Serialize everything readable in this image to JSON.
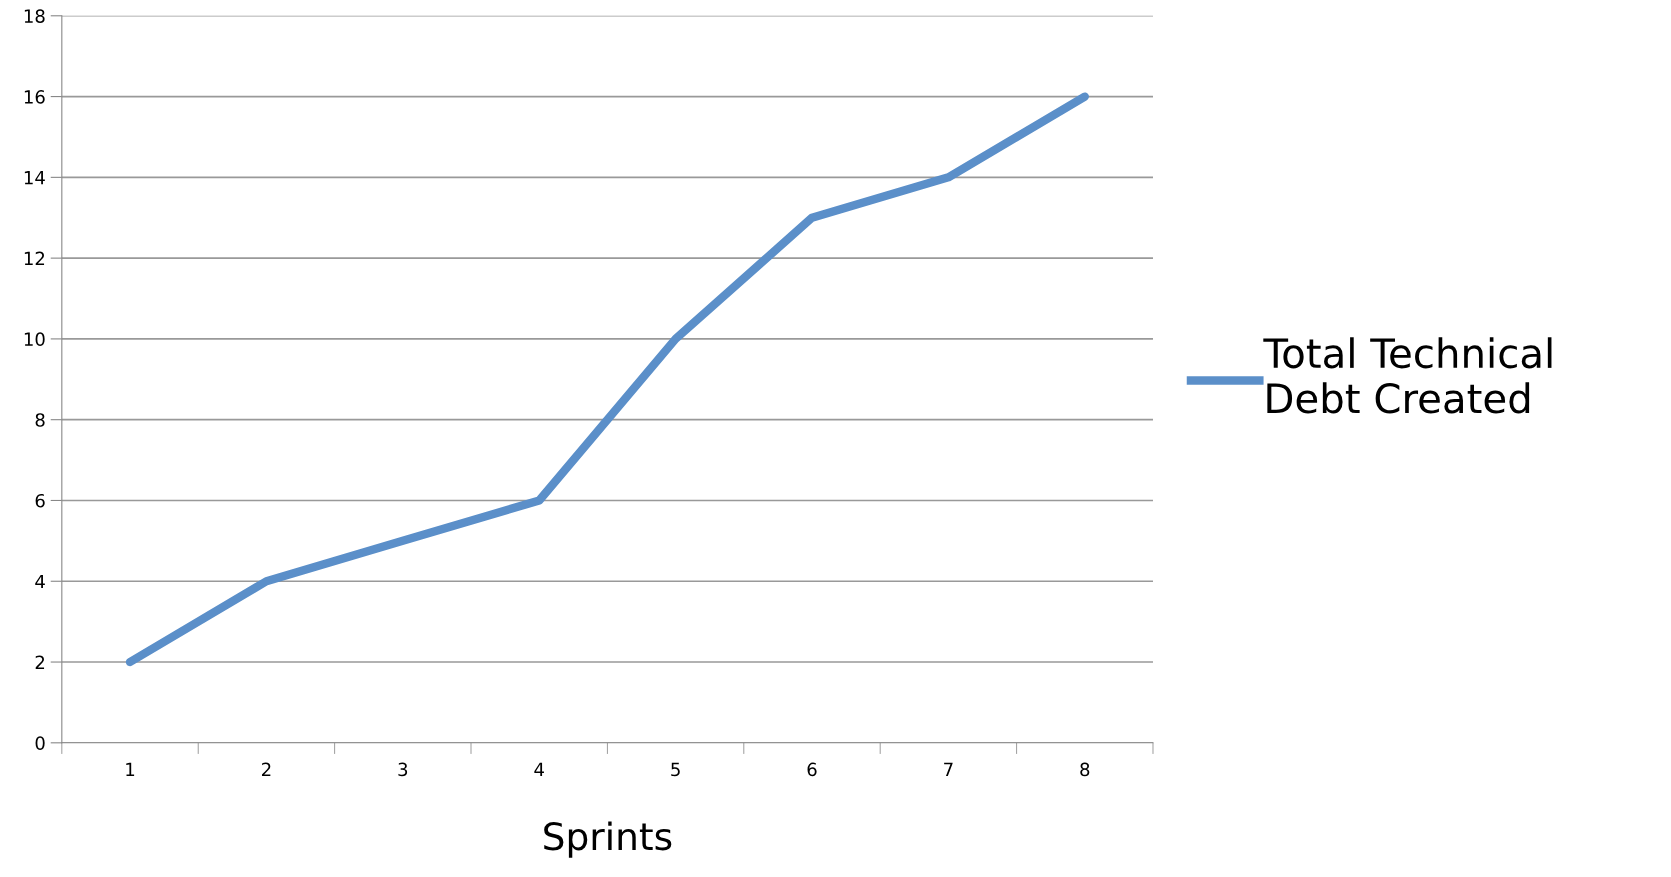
{
  "chart_data": {
    "type": "line",
    "xlabel": "Sprints",
    "categories": [
      "1",
      "2",
      "3",
      "4",
      "5",
      "6",
      "7",
      "8"
    ],
    "series": [
      {
        "name": "Total Technical Debt Created",
        "color": "#5b8fc9",
        "values": [
          2,
          4,
          5,
          6,
          10,
          13,
          14,
          16
        ]
      }
    ],
    "ylim": [
      0,
      18
    ],
    "yticks": [
      0,
      2,
      4,
      6,
      8,
      10,
      12,
      14,
      16,
      18
    ],
    "grid": "y",
    "legend": "right",
    "marker": "none",
    "line_style": "solid"
  }
}
